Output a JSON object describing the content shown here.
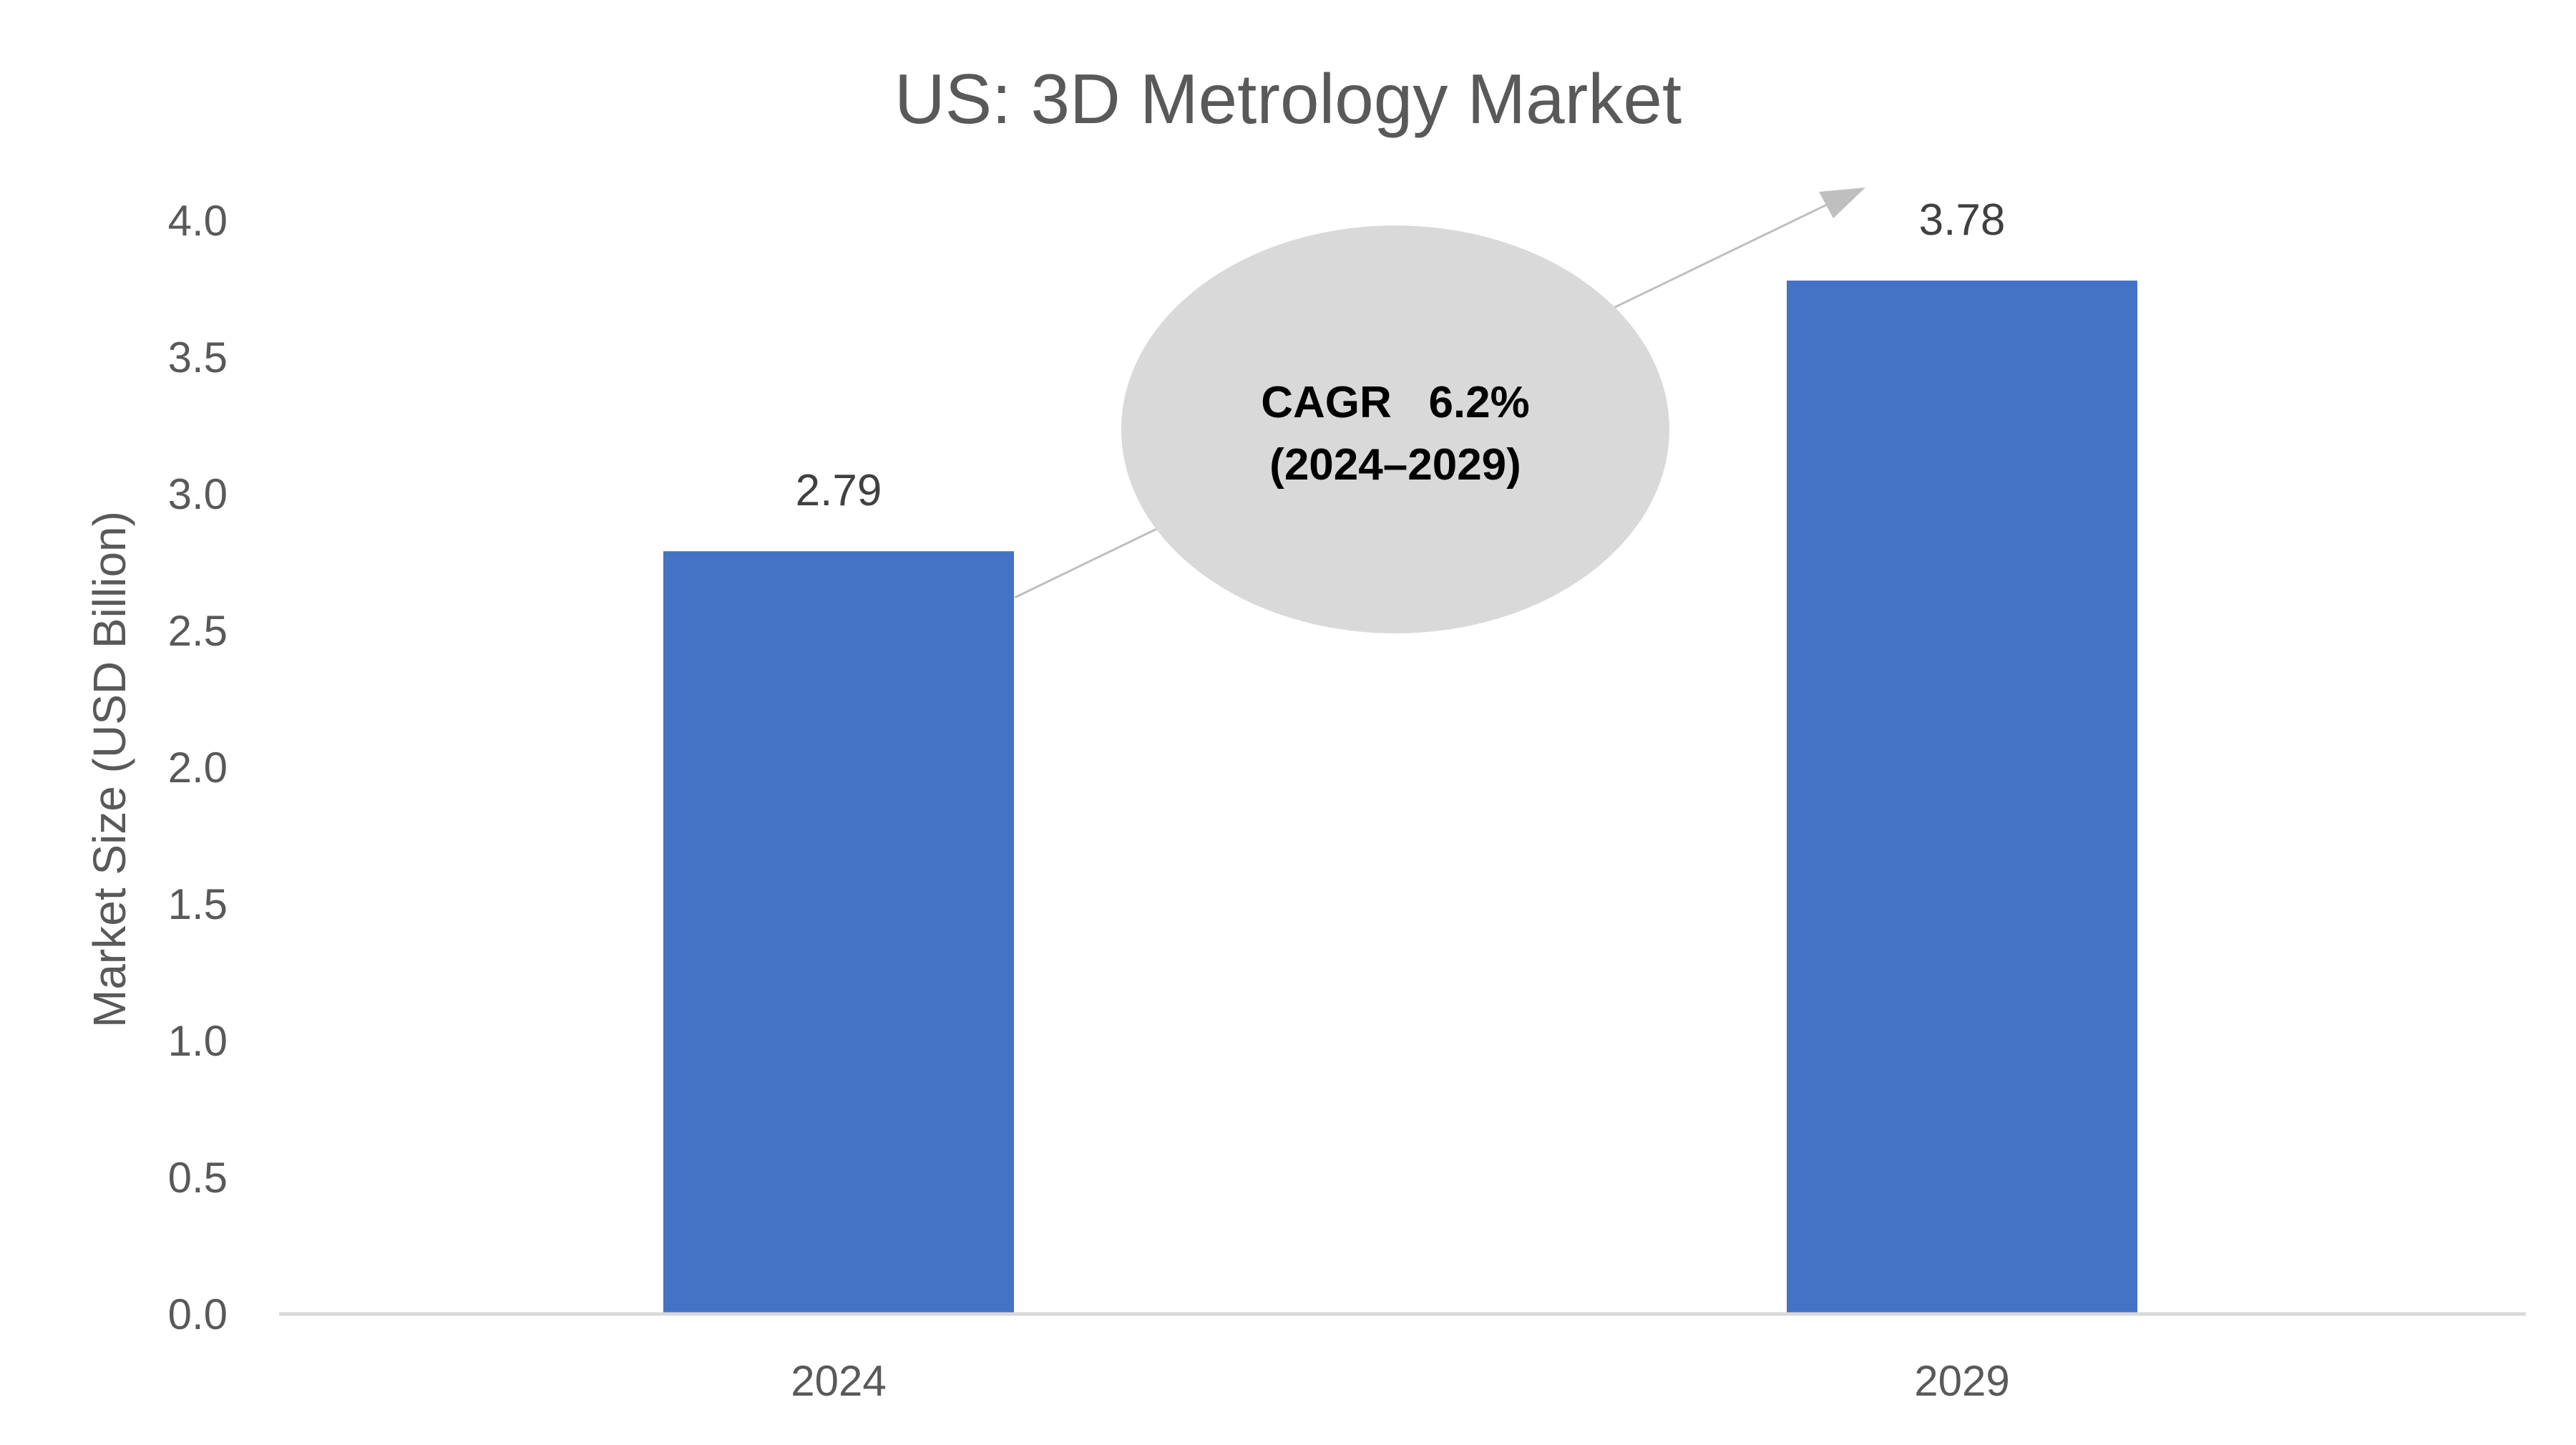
{
  "chart_data": {
    "type": "bar",
    "title": "US: 3D Metrology Market",
    "xlabel": "",
    "ylabel": "Market Size (USD Billion)",
    "categories": [
      "2024",
      "2029"
    ],
    "values": [
      2.79,
      3.78
    ],
    "data_labels": [
      "2.79",
      "3.78"
    ],
    "ylim": [
      0,
      4.0
    ],
    "yticks": [
      "0.0",
      "0.5",
      "1.0",
      "1.5",
      "2.0",
      "2.5",
      "3.0",
      "3.5",
      "4.0"
    ],
    "grid": false,
    "legend": "none",
    "bar_color": "#4472C4",
    "annotation": {
      "line1": "CAGR   6.2%",
      "line2": "(2024–2029)",
      "fill": "#D9D9D9",
      "arrow_color": "#BFBFBF"
    }
  }
}
